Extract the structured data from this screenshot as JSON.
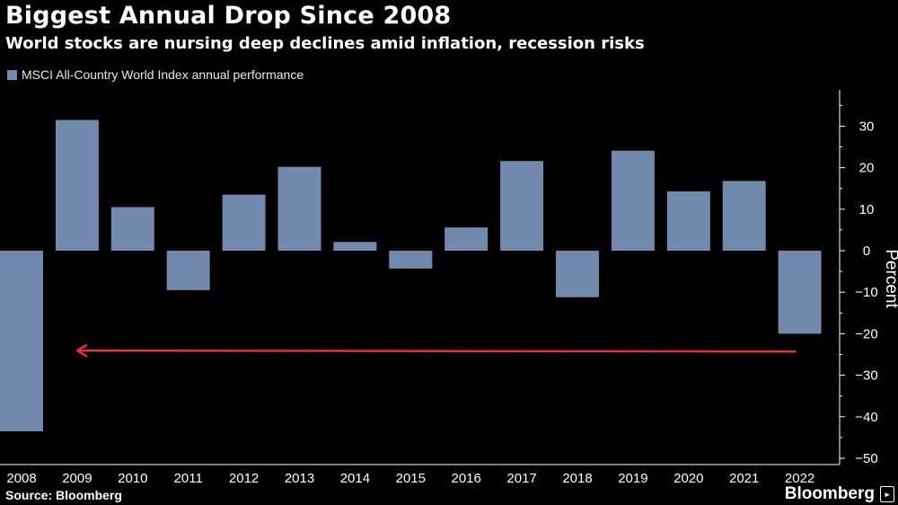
{
  "colors": {
    "bar": "#7189ac",
    "arrow": "#e53335",
    "axis": "#ffffff",
    "background": "#000000"
  },
  "title": "Biggest Annual Drop Since 2008",
  "subtitle": "World stocks are nursing deep declines amid inflation, recession risks",
  "source": "Source: Bloomberg",
  "brand": "Bloomberg",
  "brand_icon": "bloomberg-logo-icon",
  "chart_data": {
    "type": "bar",
    "title": "Biggest Annual Drop Since 2008",
    "subtitle": "World stocks are nursing deep declines amid inflation, recession risks",
    "legend": [
      "MSCI All-Country World Index annual performance"
    ],
    "legend_position": "top-left",
    "categories": [
      "2008",
      "2009",
      "2010",
      "2011",
      "2012",
      "2013",
      "2014",
      "2015",
      "2016",
      "2017",
      "2018",
      "2019",
      "2020",
      "2021",
      "2022"
    ],
    "series": [
      {
        "name": "MSCI All-Country World Index annual performance",
        "values": [
          -43.5,
          31.5,
          10.5,
          -9.5,
          13.5,
          20.2,
          2.1,
          -4.3,
          5.6,
          21.6,
          -11.2,
          24.1,
          14.3,
          16.8,
          -20.0
        ]
      }
    ],
    "ylabel": "Percent",
    "xlabel": "",
    "yticks": [
      30,
      20,
      10,
      0,
      -10,
      -20,
      -30,
      -40,
      -50
    ],
    "ylim": [
      -50,
      38
    ],
    "y_axis_side": "right",
    "annotation": {
      "type": "arrow",
      "from_category": "2022",
      "to_category": "2008",
      "y_value": -24.5
    }
  }
}
